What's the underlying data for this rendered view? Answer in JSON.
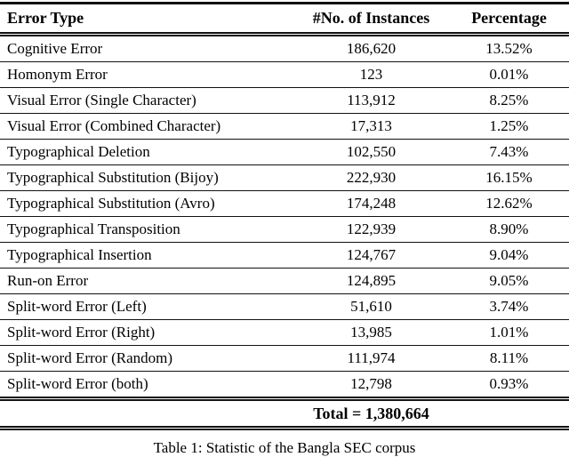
{
  "page": {
    "background": "#ffffff",
    "text_color": "#000000",
    "rule_color": "#111111"
  },
  "table": {
    "columns": [
      "Error Type",
      "#No. of Instances",
      "Percentage"
    ],
    "rows": [
      {
        "type": "Cognitive Error",
        "instances": "186,620",
        "percentage": "13.52%"
      },
      {
        "type": "Homonym Error",
        "instances": "123",
        "percentage": "0.01%"
      },
      {
        "type": "Visual Error (Single Character)",
        "instances": "113,912",
        "percentage": "8.25%"
      },
      {
        "type": "Visual Error (Combined Character)",
        "instances": "17,313",
        "percentage": "1.25%"
      },
      {
        "type": "Typographical Deletion",
        "instances": "102,550",
        "percentage": "7.43%"
      },
      {
        "type": "Typographical Substitution (Bijoy)",
        "instances": "222,930",
        "percentage": "16.15%"
      },
      {
        "type": "Typographical Substitution (Avro)",
        "instances": "174,248",
        "percentage": "12.62%"
      },
      {
        "type": "Typographical Transposition",
        "instances": "122,939",
        "percentage": "8.90%"
      },
      {
        "type": "Typographical Insertion",
        "instances": "124,767",
        "percentage": "9.04%"
      },
      {
        "type": "Run-on Error",
        "instances": "124,895",
        "percentage": "9.05%"
      },
      {
        "type": "Split-word Error (Left)",
        "instances": "51,610",
        "percentage": "3.74%"
      },
      {
        "type": "Split-word Error (Right)",
        "instances": "13,985",
        "percentage": "1.01%"
      },
      {
        "type": "Split-word Error (Random)",
        "instances": "111,974",
        "percentage": "8.11%"
      },
      {
        "type": "Split-word Error (both)",
        "instances": "12,798",
        "percentage": "0.93%"
      }
    ],
    "total_label": "Total = 1,380,664"
  },
  "caption": "Table 1: Statistic of the Bangla SEC corpus"
}
